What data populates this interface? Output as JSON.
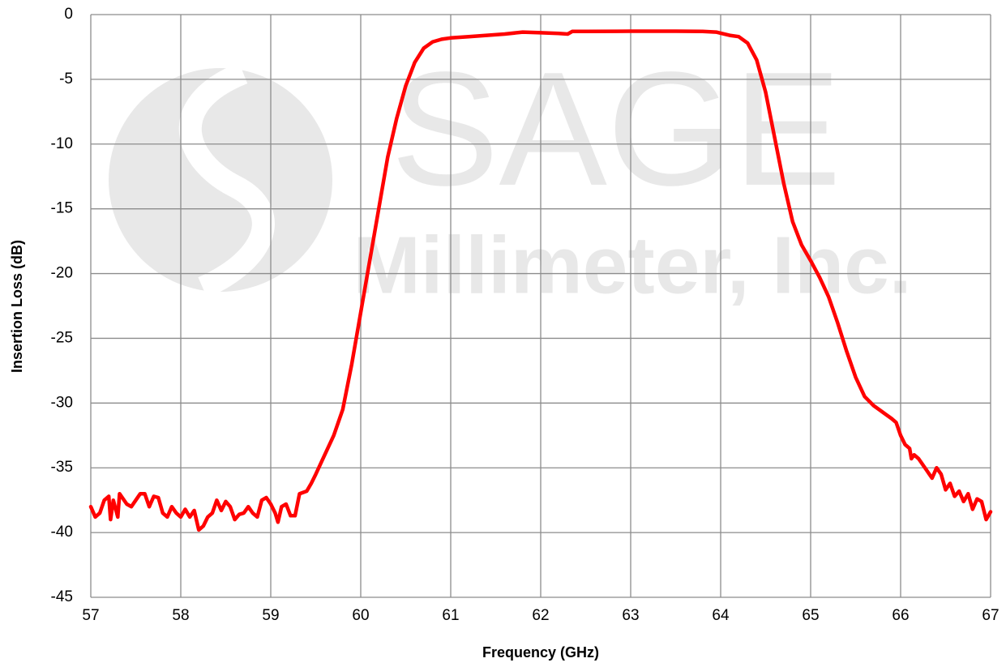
{
  "chart_data": {
    "type": "line",
    "xlabel": "Frequency (GHz)",
    "ylabel": "Insertion Loss (dB)",
    "watermark": [
      "SAGE",
      "Millimeter, Inc."
    ],
    "xlim": [
      57,
      67
    ],
    "xticks": [
      57,
      58,
      59,
      60,
      61,
      62,
      63,
      64,
      65,
      66,
      67
    ],
    "ylim": [
      -45,
      0
    ],
    "yticks": [
      0,
      -5,
      -10,
      -15,
      -20,
      -25,
      -30,
      -35,
      -40,
      -45
    ],
    "grid": true,
    "series": [
      {
        "color": "#ff0000",
        "x": [
          57.0,
          57.05,
          57.1,
          57.15,
          57.2,
          57.22,
          57.25,
          57.3,
          57.32,
          57.4,
          57.45,
          57.5,
          57.55,
          57.6,
          57.65,
          57.7,
          57.75,
          57.8,
          57.85,
          57.9,
          57.95,
          58.0,
          58.05,
          58.1,
          58.15,
          58.2,
          58.25,
          58.3,
          58.35,
          58.4,
          58.45,
          58.5,
          58.55,
          58.6,
          58.65,
          58.7,
          58.75,
          58.8,
          58.85,
          58.9,
          58.95,
          59.0,
          59.05,
          59.08,
          59.12,
          59.17,
          59.22,
          59.27,
          59.32,
          59.4,
          59.45,
          59.5,
          59.6,
          59.7,
          59.8,
          59.9,
          60.0,
          60.1,
          60.2,
          60.3,
          60.4,
          60.5,
          60.6,
          60.7,
          60.8,
          60.9,
          61.0,
          61.2,
          61.4,
          61.6,
          61.8,
          62.0,
          62.2,
          62.3,
          62.35,
          62.5,
          63.0,
          63.5,
          63.8,
          63.95,
          64.1,
          64.2,
          64.3,
          64.4,
          64.5,
          64.6,
          64.7,
          64.8,
          64.9,
          65.0,
          65.1,
          65.2,
          65.3,
          65.4,
          65.5,
          65.6,
          65.7,
          65.8,
          65.9,
          65.95,
          66.0,
          66.05,
          66.1,
          66.12,
          66.15,
          66.2,
          66.3,
          66.35,
          66.4,
          66.45,
          66.5,
          66.55,
          66.6,
          66.65,
          66.7,
          66.75,
          66.8,
          66.85,
          66.9,
          66.95,
          67.0
        ],
        "values": [
          -38,
          -38.8,
          -38.5,
          -37.5,
          -37.2,
          -39,
          -37.5,
          -38.8,
          -37,
          -37.8,
          -38,
          -37.5,
          -37,
          -37,
          -38,
          -37.2,
          -37.3,
          -38.5,
          -38.8,
          -38,
          -38.5,
          -38.8,
          -38.2,
          -38.8,
          -38.3,
          -39.8,
          -39.5,
          -38.8,
          -38.5,
          -37.5,
          -38.3,
          -37.6,
          -38,
          -39,
          -38.6,
          -38.5,
          -38,
          -38.5,
          -38.8,
          -37.5,
          -37.3,
          -37.8,
          -38.5,
          -39.2,
          -38,
          -37.8,
          -38.7,
          -38.7,
          -37,
          -36.8,
          -36.2,
          -35.5,
          -34,
          -32.5,
          -30.5,
          -27,
          -23,
          -19,
          -15,
          -11,
          -8,
          -5.5,
          -3.7,
          -2.6,
          -2.1,
          -1.9,
          -1.8,
          -1.7,
          -1.6,
          -1.5,
          -1.35,
          -1.4,
          -1.45,
          -1.5,
          -1.3,
          -1.3,
          -1.28,
          -1.28,
          -1.3,
          -1.35,
          -1.6,
          -1.7,
          -2.2,
          -3.5,
          -6,
          -9.5,
          -13,
          -16,
          -17.8,
          -19,
          -20.3,
          -21.8,
          -23.8,
          -26,
          -28,
          -29.5,
          -30.2,
          -30.7,
          -31.2,
          -31.5,
          -32.5,
          -33.2,
          -33.5,
          -34.3,
          -34,
          -34.3,
          -35.3,
          -35.8,
          -35,
          -35.5,
          -36.7,
          -36.2,
          -37.2,
          -36.8,
          -37.6,
          -37,
          -38.2,
          -37.4,
          -37.6,
          -39,
          -38.4
        ]
      }
    ]
  }
}
